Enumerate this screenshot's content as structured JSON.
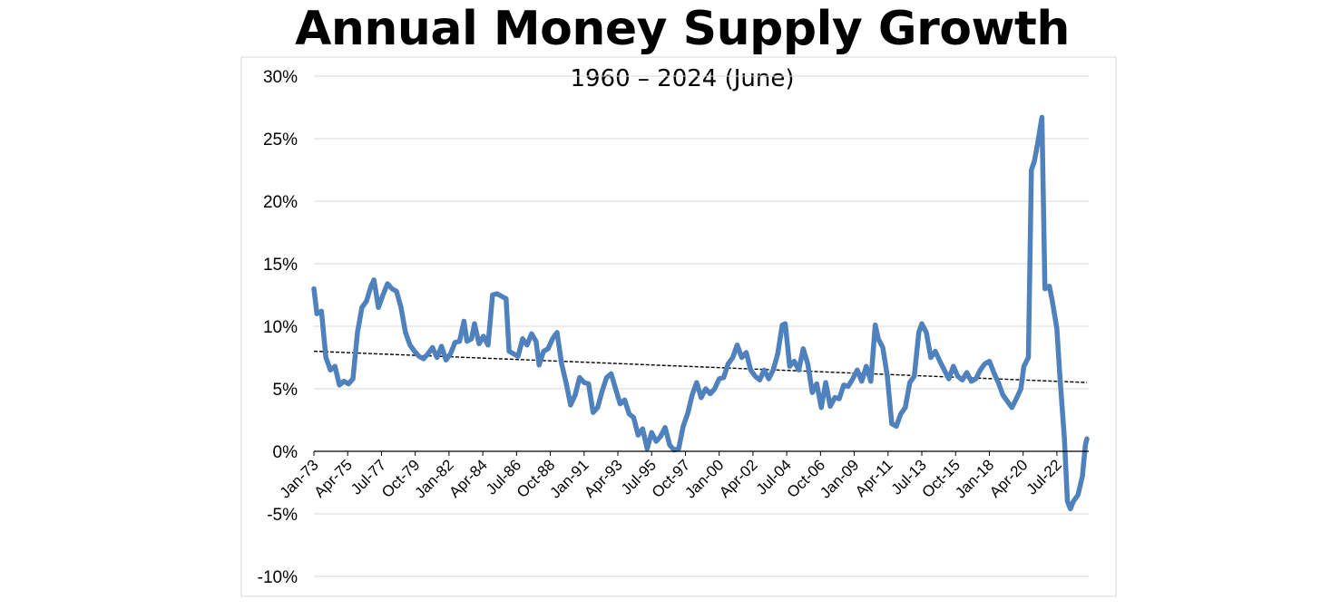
{
  "chart_data": {
    "type": "line",
    "title": "Annual Money Supply Growth",
    "subtitle": "1960 – 2024 (June)",
    "xlabel": "",
    "ylabel": "",
    "ylim": [
      -10,
      30
    ],
    "y_ticks": [
      30,
      25,
      20,
      15,
      10,
      5,
      0,
      -5,
      -10
    ],
    "y_tick_labels": [
      "30%",
      "25%",
      "20%",
      "15%",
      "10%",
      "5%",
      "0%",
      "-5%",
      "-10%"
    ],
    "x_tick_labels": [
      "Jan-73",
      "Apr-75",
      "Jul-77",
      "Oct-79",
      "Jan-82",
      "Apr-84",
      "Jul-86",
      "Oct-88",
      "Jan-91",
      "Apr-93",
      "Jul-95",
      "Oct-97",
      "Jan-00",
      "Apr-02",
      "Jul-04",
      "Oct-06",
      "Jan-09",
      "Apr-11",
      "Jul-13",
      "Oct-15",
      "Jan-18",
      "Apr-20",
      "Jul-22"
    ],
    "x_tick_years": [
      1973.0,
      1975.25,
      1977.5,
      1979.75,
      1982.0,
      1984.25,
      1986.5,
      1988.75,
      1991.0,
      1993.25,
      1995.5,
      1997.75,
      2000.0,
      2002.25,
      2004.5,
      2006.75,
      2009.0,
      2011.25,
      2013.5,
      2015.75,
      2018.0,
      2020.25,
      2022.5
    ],
    "x_range": [
      1973.0,
      2024.5
    ],
    "grid": true,
    "series": [
      {
        "color": "#4f81bd",
        "points": [
          [
            1973.0,
            13.0
          ],
          [
            1973.2,
            11.0
          ],
          [
            1973.5,
            11.2
          ],
          [
            1973.8,
            7.5
          ],
          [
            1974.1,
            6.5
          ],
          [
            1974.4,
            6.8
          ],
          [
            1974.7,
            5.3
          ],
          [
            1975.0,
            5.6
          ],
          [
            1975.3,
            5.4
          ],
          [
            1975.6,
            5.8
          ],
          [
            1975.9,
            9.5
          ],
          [
            1976.2,
            11.5
          ],
          [
            1976.5,
            12.0
          ],
          [
            1976.8,
            13.2
          ],
          [
            1977.0,
            13.7
          ],
          [
            1977.3,
            11.5
          ],
          [
            1977.6,
            12.5
          ],
          [
            1977.9,
            13.4
          ],
          [
            1978.2,
            13.0
          ],
          [
            1978.5,
            12.8
          ],
          [
            1978.8,
            11.5
          ],
          [
            1979.1,
            9.5
          ],
          [
            1979.4,
            8.5
          ],
          [
            1979.7,
            8.0
          ],
          [
            1980.0,
            7.6
          ],
          [
            1980.3,
            7.4
          ],
          [
            1980.6,
            7.8
          ],
          [
            1980.9,
            8.3
          ],
          [
            1981.2,
            7.5
          ],
          [
            1981.5,
            8.4
          ],
          [
            1981.8,
            7.3
          ],
          [
            1982.1,
            7.8
          ],
          [
            1982.4,
            8.7
          ],
          [
            1982.7,
            8.8
          ],
          [
            1983.0,
            10.4
          ],
          [
            1983.2,
            8.8
          ],
          [
            1983.5,
            9.0
          ],
          [
            1983.7,
            10.2
          ],
          [
            1984.0,
            8.6
          ],
          [
            1984.3,
            9.2
          ],
          [
            1984.6,
            8.5
          ],
          [
            1984.9,
            12.5
          ],
          [
            1985.2,
            12.6
          ],
          [
            1985.5,
            12.4
          ],
          [
            1985.8,
            12.2
          ],
          [
            1986.0,
            8.0
          ],
          [
            1986.3,
            7.8
          ],
          [
            1986.6,
            7.6
          ],
          [
            1986.9,
            9.0
          ],
          [
            1987.2,
            8.5
          ],
          [
            1987.5,
            9.4
          ],
          [
            1987.8,
            8.8
          ],
          [
            1988.0,
            6.9
          ],
          [
            1988.3,
            8.0
          ],
          [
            1988.6,
            8.2
          ],
          [
            1988.9,
            9.0
          ],
          [
            1989.2,
            9.5
          ],
          [
            1989.5,
            7.0
          ],
          [
            1989.8,
            5.5
          ],
          [
            1990.1,
            3.7
          ],
          [
            1990.4,
            4.5
          ],
          [
            1990.7,
            5.9
          ],
          [
            1991.0,
            5.5
          ],
          [
            1991.3,
            5.4
          ],
          [
            1991.6,
            3.1
          ],
          [
            1991.9,
            3.5
          ],
          [
            1992.2,
            4.8
          ],
          [
            1992.5,
            5.9
          ],
          [
            1992.8,
            6.2
          ],
          [
            1993.1,
            5.0
          ],
          [
            1993.4,
            3.8
          ],
          [
            1993.7,
            4.1
          ],
          [
            1994.0,
            3.0
          ],
          [
            1994.3,
            2.7
          ],
          [
            1994.6,
            1.3
          ],
          [
            1994.9,
            1.8
          ],
          [
            1995.2,
            0.2
          ],
          [
            1995.5,
            1.5
          ],
          [
            1995.8,
            0.8
          ],
          [
            1996.1,
            1.2
          ],
          [
            1996.4,
            1.9
          ],
          [
            1996.7,
            0.5
          ],
          [
            1997.0,
            0.1
          ],
          [
            1997.3,
            0.2
          ],
          [
            1997.6,
            2.0
          ],
          [
            1997.9,
            3.0
          ],
          [
            1998.2,
            4.5
          ],
          [
            1998.5,
            5.5
          ],
          [
            1998.8,
            4.3
          ],
          [
            1999.1,
            5.0
          ],
          [
            1999.4,
            4.6
          ],
          [
            1999.7,
            5.0
          ],
          [
            2000.0,
            5.8
          ],
          [
            2000.3,
            5.9
          ],
          [
            2000.6,
            7.0
          ],
          [
            2000.9,
            7.5
          ],
          [
            2001.2,
            8.5
          ],
          [
            2001.5,
            7.5
          ],
          [
            2001.8,
            7.9
          ],
          [
            2002.1,
            6.5
          ],
          [
            2002.4,
            6.0
          ],
          [
            2002.7,
            5.7
          ],
          [
            2003.0,
            6.5
          ],
          [
            2003.3,
            5.8
          ],
          [
            2003.6,
            6.5
          ],
          [
            2003.9,
            7.8
          ],
          [
            2004.2,
            10.1
          ],
          [
            2004.4,
            10.2
          ],
          [
            2004.7,
            6.8
          ],
          [
            2005.0,
            7.2
          ],
          [
            2005.3,
            6.5
          ],
          [
            2005.6,
            8.2
          ],
          [
            2005.9,
            7.0
          ],
          [
            2006.2,
            4.7
          ],
          [
            2006.5,
            5.4
          ],
          [
            2006.8,
            3.5
          ],
          [
            2007.1,
            5.5
          ],
          [
            2007.4,
            3.6
          ],
          [
            2007.7,
            4.3
          ],
          [
            2008.0,
            4.2
          ],
          [
            2008.3,
            5.3
          ],
          [
            2008.6,
            5.2
          ],
          [
            2008.9,
            5.8
          ],
          [
            2009.2,
            6.5
          ],
          [
            2009.5,
            5.6
          ],
          [
            2009.8,
            6.8
          ],
          [
            2010.1,
            5.6
          ],
          [
            2010.4,
            10.1
          ],
          [
            2010.6,
            9.0
          ],
          [
            2010.9,
            8.3
          ],
          [
            2011.2,
            6.0
          ],
          [
            2011.5,
            2.2
          ],
          [
            2011.8,
            2.0
          ],
          [
            2012.1,
            3.0
          ],
          [
            2012.4,
            3.5
          ],
          [
            2012.7,
            5.5
          ],
          [
            2013.0,
            6.0
          ],
          [
            2013.3,
            9.5
          ],
          [
            2013.5,
            10.2
          ],
          [
            2013.8,
            9.5
          ],
          [
            2014.1,
            7.5
          ],
          [
            2014.4,
            8.0
          ],
          [
            2014.7,
            7.2
          ],
          [
            2015.0,
            6.5
          ],
          [
            2015.3,
            5.8
          ],
          [
            2015.6,
            6.8
          ],
          [
            2015.9,
            6.0
          ],
          [
            2016.2,
            5.7
          ],
          [
            2016.5,
            6.3
          ],
          [
            2016.8,
            5.6
          ],
          [
            2017.1,
            5.8
          ],
          [
            2017.4,
            6.5
          ],
          [
            2017.7,
            7.0
          ],
          [
            2018.0,
            7.2
          ],
          [
            2018.3,
            6.3
          ],
          [
            2018.6,
            5.5
          ],
          [
            2018.9,
            4.5
          ],
          [
            2019.2,
            4.0
          ],
          [
            2019.5,
            3.5
          ],
          [
            2019.8,
            4.2
          ],
          [
            2020.1,
            5.0
          ],
          [
            2020.3,
            6.8
          ],
          [
            2020.6,
            7.5
          ],
          [
            2020.8,
            22.5
          ],
          [
            2021.0,
            23.2
          ],
          [
            2021.2,
            24.5
          ],
          [
            2021.5,
            26.7
          ],
          [
            2021.7,
            13.0
          ],
          [
            2022.0,
            13.2
          ],
          [
            2022.2,
            12.0
          ],
          [
            2022.5,
            9.8
          ],
          [
            2022.7,
            6.0
          ],
          [
            2023.0,
            1.0
          ],
          [
            2023.2,
            -4.0
          ],
          [
            2023.4,
            -4.6
          ],
          [
            2023.6,
            -4.0
          ],
          [
            2023.9,
            -3.5
          ],
          [
            2024.2,
            -2.0
          ],
          [
            2024.4,
            0.5
          ],
          [
            2024.5,
            1.0
          ]
        ]
      }
    ],
    "trendline": {
      "style": "dashed",
      "color": "#000000",
      "from": [
        1973.0,
        8.0
      ],
      "to": [
        2024.5,
        5.5
      ]
    }
  }
}
